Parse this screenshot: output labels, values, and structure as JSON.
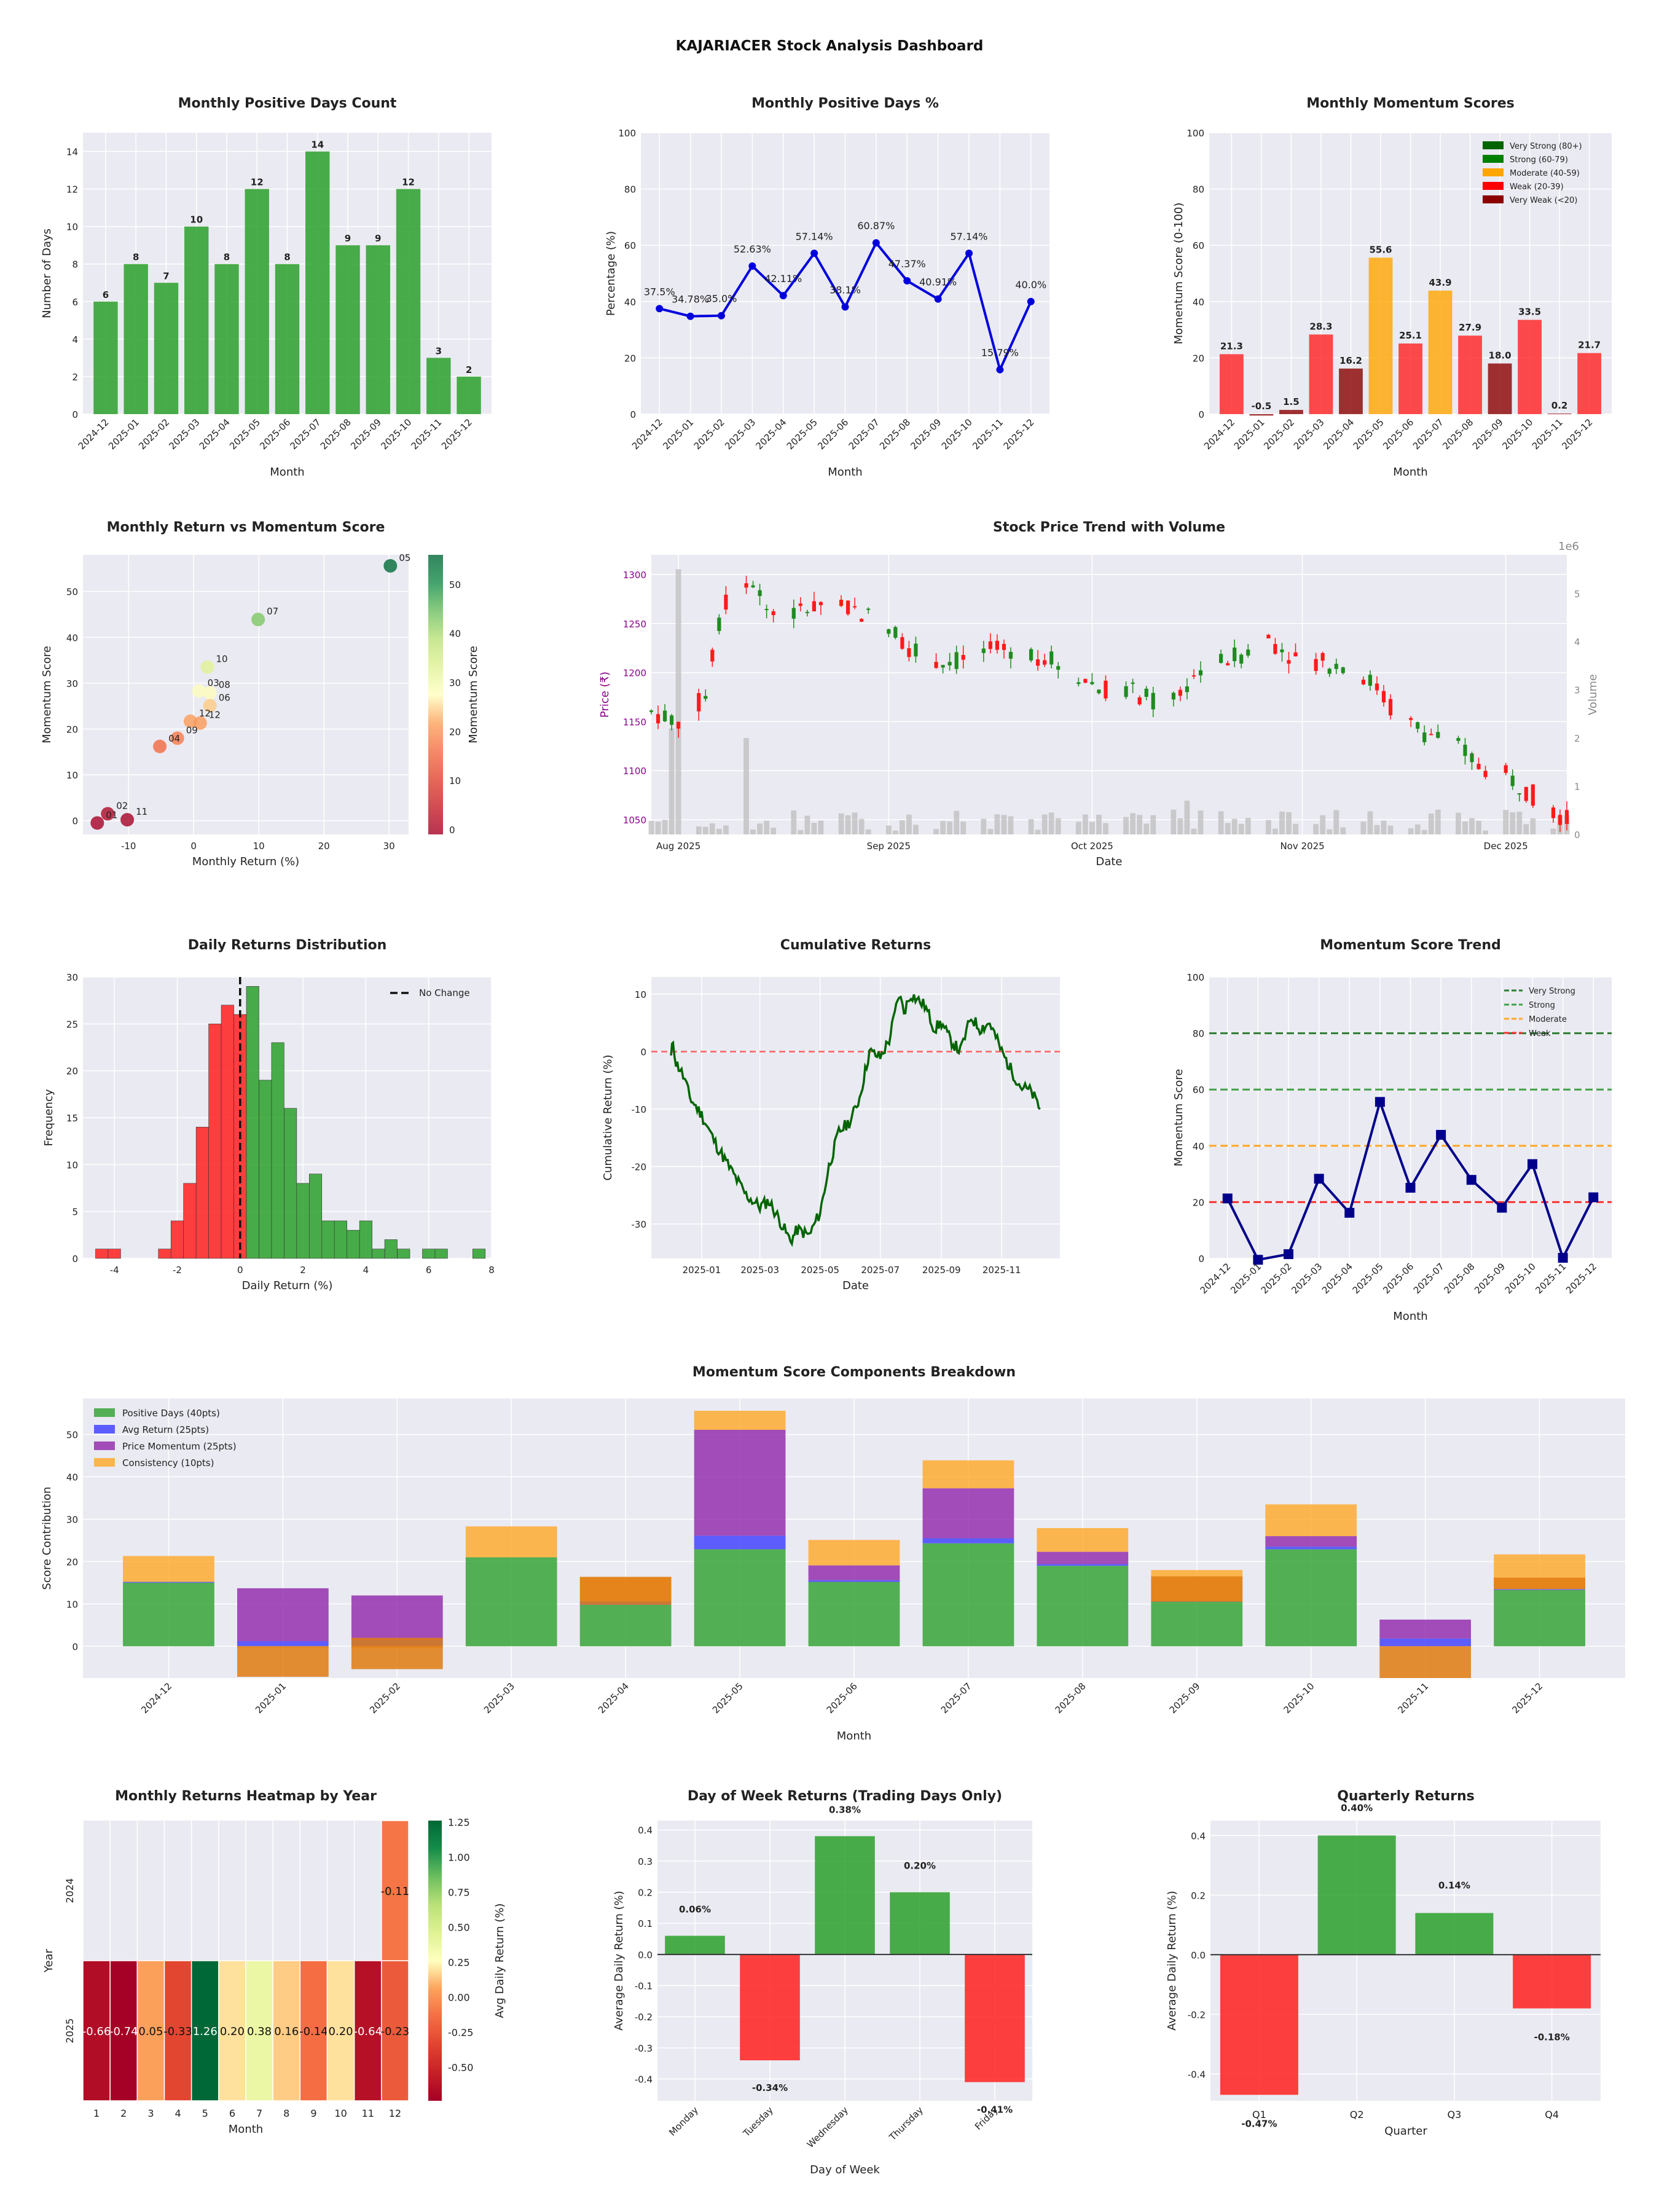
{
  "suptitle": "KAJARIACER Stock Analysis Dashboard",
  "months": [
    "2024-12",
    "2025-01",
    "2025-02",
    "2025-03",
    "2025-04",
    "2025-05",
    "2025-06",
    "2025-07",
    "2025-08",
    "2025-09",
    "2025-10",
    "2025-11",
    "2025-12"
  ],
  "chart_data": [
    {
      "id": "positive-days-count",
      "type": "bar",
      "title": "Monthly Positive Days Count",
      "xlabel": "Month",
      "ylabel": "Number of Days",
      "ylim": [
        0,
        15
      ],
      "yticks": [
        0,
        2,
        4,
        6,
        8,
        10,
        12,
        14
      ],
      "values": [
        6,
        8,
        7,
        10,
        8,
        12,
        8,
        14,
        9,
        9,
        12,
        3,
        2
      ],
      "color": "#2ca02c"
    },
    {
      "id": "positive-days-pct",
      "type": "line",
      "title": "Monthly Positive Days %",
      "xlabel": "Month",
      "ylabel": "Percentage (%)",
      "ylim": [
        0,
        100
      ],
      "yticks": [
        0,
        20,
        40,
        60,
        80,
        100
      ],
      "values": [
        37.5,
        34.78,
        35.0,
        52.63,
        42.11,
        57.14,
        38.1,
        60.87,
        47.37,
        40.91,
        57.14,
        15.79,
        40.0
      ],
      "labels": [
        "37.5%",
        "34.78%",
        "35.0%",
        "52.63%",
        "42.11%",
        "57.14%",
        "38.1%",
        "60.87%",
        "47.37%",
        "40.91%",
        "57.14%",
        "15.79%",
        "40.0%"
      ],
      "color": "#0000dd"
    },
    {
      "id": "momentum-scores",
      "type": "bar",
      "title": "Monthly Momentum Scores",
      "xlabel": "Month",
      "ylabel": "Momentum Score (0-100)",
      "ylim": [
        0,
        100
      ],
      "yticks": [
        0,
        20,
        40,
        60,
        80,
        100
      ],
      "values": [
        21.3,
        -0.5,
        1.5,
        28.3,
        16.2,
        55.6,
        25.1,
        43.9,
        27.9,
        18.0,
        33.5,
        0.2,
        21.7
      ],
      "labels": [
        "21.3",
        "-0.5",
        "1.5",
        "28.3",
        "16.2",
        "55.6",
        "25.1",
        "43.9",
        "27.9",
        "18.0",
        "33.5",
        "0.2",
        "21.7"
      ],
      "bar_colors": [
        "#ff2020",
        "#8b0000",
        "#8b0000",
        "#ff2020",
        "#8b0000",
        "#ffa500",
        "#ff2020",
        "#ffa500",
        "#ff2020",
        "#8b0000",
        "#ff2020",
        "#8b0000",
        "#ff2020"
      ],
      "legend": [
        {
          "label": "Very Strong (80+)",
          "color": "#006400"
        },
        {
          "label": "Strong (60-79)",
          "color": "#008000"
        },
        {
          "label": "Moderate (40-59)",
          "color": "#ffa500"
        },
        {
          "label": "Weak (20-39)",
          "color": "#ff0000"
        },
        {
          "label": "Very Weak (<20)",
          "color": "#8b0000"
        }
      ],
      "legend_position": "top-right"
    },
    {
      "id": "return-vs-momentum",
      "type": "scatter",
      "title": "Monthly Return vs Momentum Score",
      "xlabel": "Monthly Return (%)",
      "ylabel": "Momentum Score",
      "xlim": [
        -17,
        33
      ],
      "ylim": [
        -3,
        58
      ],
      "xticks": [
        -10,
        0,
        10,
        20,
        30
      ],
      "yticks": [
        0,
        10,
        20,
        30,
        40,
        50
      ],
      "colorbar_label": "Momentum Score",
      "colorbar_ticks": [
        0,
        10,
        20,
        30,
        40,
        50
      ],
      "points": [
        {
          "label": "05",
          "x": 30.2,
          "y": 55.6
        },
        {
          "label": "07",
          "x": 9.9,
          "y": 43.9
        },
        {
          "label": "10",
          "x": 2.1,
          "y": 33.5
        },
        {
          "label": "03",
          "x": 0.8,
          "y": 28.3
        },
        {
          "label": "08",
          "x": 2.5,
          "y": 27.9
        },
        {
          "label": "06",
          "x": 2.5,
          "y": 25.1
        },
        {
          "label": "12",
          "x": -0.5,
          "y": 21.7
        },
        {
          "label": "12",
          "x": 1.0,
          "y": 21.3
        },
        {
          "label": "09",
          "x": -2.5,
          "y": 18.0
        },
        {
          "label": "04",
          "x": -5.2,
          "y": 16.2
        },
        {
          "label": "02",
          "x": -13.2,
          "y": 1.5
        },
        {
          "label": "01",
          "x": -14.8,
          "y": -0.5
        },
        {
          "label": "11",
          "x": -10.2,
          "y": 0.2
        }
      ]
    },
    {
      "id": "price-trend-volume",
      "type": "candlestick",
      "title": "Stock Price Trend with Volume",
      "xlabel": "Date",
      "ylabel": "Price (₹)",
      "y2label": "Volume",
      "y2_multiplier": "1e6",
      "ylim": [
        1035,
        1320
      ],
      "yticks": [
        1050,
        1100,
        1150,
        1200,
        1250,
        1300
      ],
      "y2lim": [
        0,
        5.8
      ],
      "y2ticks": [
        0,
        1,
        2,
        3,
        4,
        5
      ],
      "x_start": "2025-07-28",
      "x_end": "2025-12-10",
      "x_tick_labels": [
        {
          "label": "Aug 2025",
          "date": "2025-08-01"
        },
        {
          "label": "Sep 2025",
          "date": "2025-09-01"
        },
        {
          "label": "Oct 2025",
          "date": "2025-10-01"
        },
        {
          "label": "Nov 2025",
          "date": "2025-11-01"
        },
        {
          "label": "Dec 2025",
          "date": "2025-12-01"
        }
      ],
      "price_path": [
        [
          "2025-07-28",
          1160
        ],
        [
          "2025-08-01",
          1150
        ],
        [
          "2025-08-05",
          1175
        ],
        [
          "2025-08-07",
          1250
        ],
        [
          "2025-08-08",
          1270
        ],
        [
          "2025-08-12",
          1295
        ],
        [
          "2025-08-14",
          1265
        ],
        [
          "2025-08-18",
          1260
        ],
        [
          "2025-08-22",
          1270
        ],
        [
          "2025-08-28",
          1262
        ],
        [
          "2025-09-02",
          1240
        ],
        [
          "2025-09-05",
          1220
        ],
        [
          "2025-09-10",
          1210
        ],
        [
          "2025-09-15",
          1220
        ],
        [
          "2025-09-20",
          1225
        ],
        [
          "2025-09-26",
          1210
        ],
        [
          "2025-10-02",
          1185
        ],
        [
          "2025-10-07",
          1180
        ],
        [
          "2025-10-10",
          1170
        ],
        [
          "2025-10-14",
          1180
        ],
        [
          "2025-10-17",
          1205
        ],
        [
          "2025-10-22",
          1215
        ],
        [
          "2025-10-27",
          1235
        ],
        [
          "2025-10-31",
          1215
        ],
        [
          "2025-11-04",
          1210
        ],
        [
          "2025-11-08",
          1208
        ],
        [
          "2025-11-12",
          1185
        ],
        [
          "2025-11-15",
          1155
        ],
        [
          "2025-11-19",
          1140
        ],
        [
          "2025-11-23",
          1130
        ],
        [
          "2025-11-27",
          1105
        ],
        [
          "2025-12-01",
          1095
        ],
        [
          "2025-12-04",
          1080
        ],
        [
          "2025-12-08",
          1060
        ],
        [
          "2025-12-10",
          1050
        ]
      ],
      "volume_spikes": [
        [
          "2025-08-01",
          5.5
        ],
        [
          "2025-07-31",
          2.2
        ],
        [
          "2025-08-09",
          2.2
        ],
        [
          "2025-08-11",
          2.0
        ],
        [
          "2025-10-15",
          0.7
        ],
        [
          "2025-10-19",
          0.65
        ],
        [
          "2025-11-24",
          0.45
        ]
      ]
    },
    {
      "id": "daily-returns-distribution",
      "type": "histogram",
      "title": "Daily Returns Distribution",
      "xlabel": "Daily Return (%)",
      "ylabel": "Frequency",
      "xlim": [
        -5,
        8
      ],
      "ylim": [
        0,
        30
      ],
      "xticks": [
        -4,
        -2,
        0,
        2,
        4,
        6,
        8
      ],
      "yticks": [
        0,
        5,
        10,
        15,
        20,
        25,
        30
      ],
      "bin_start": -4.6,
      "bin_width": 0.4,
      "counts": [
        1,
        1,
        0,
        0,
        0,
        1,
        4,
        8,
        14,
        25,
        27,
        26,
        29,
        19,
        23,
        16,
        8,
        9,
        4,
        4,
        3,
        4,
        1,
        2,
        1,
        0,
        1,
        1,
        0,
        0,
        1
      ],
      "negative_color": "#ff2020",
      "positive_color": "#2ca02c",
      "legend": "No Change",
      "legend_position": "top-right"
    },
    {
      "id": "cumulative-returns",
      "type": "line",
      "title": "Cumulative Returns",
      "xlabel": "Date",
      "ylabel": "Cumulative Return (%)",
      "x_start": "2024-12-01",
      "x_end": "2025-12-10",
      "ylim": [
        -36,
        13
      ],
      "yticks": [
        -30,
        -20,
        -10,
        0,
        10
      ],
      "x_tick_labels": [
        {
          "label": "2025-01",
          "date": "2025-01-01"
        },
        {
          "label": "2025-03",
          "date": "2025-03-01"
        },
        {
          "label": "2025-05",
          "date": "2025-05-01"
        },
        {
          "label": "2025-07",
          "date": "2025-07-01"
        },
        {
          "label": "2025-09",
          "date": "2025-09-01"
        },
        {
          "label": "2025-11",
          "date": "2025-11-01"
        }
      ],
      "path": [
        [
          "2024-12-01",
          -1
        ],
        [
          "2024-12-03",
          2
        ],
        [
          "2024-12-06",
          -2
        ],
        [
          "2024-12-10",
          -3
        ],
        [
          "2024-12-15",
          -5
        ],
        [
          "2024-12-20",
          -8
        ],
        [
          "2025-01-01",
          -11
        ],
        [
          "2025-01-15",
          -16
        ],
        [
          "2025-02-01",
          -21
        ],
        [
          "2025-02-15",
          -25
        ],
        [
          "2025-03-01",
          -27
        ],
        [
          "2025-03-10",
          -26
        ],
        [
          "2025-03-20",
          -29
        ],
        [
          "2025-04-01",
          -33
        ],
        [
          "2025-04-08",
          -31
        ],
        [
          "2025-04-20",
          -32
        ],
        [
          "2025-05-01",
          -28
        ],
        [
          "2025-05-10",
          -20
        ],
        [
          "2025-05-20",
          -14
        ],
        [
          "2025-06-01",
          -12
        ],
        [
          "2025-06-10",
          -8
        ],
        [
          "2025-06-20",
          0
        ],
        [
          "2025-07-01",
          -1
        ],
        [
          "2025-07-10",
          2
        ],
        [
          "2025-07-20",
          10
        ],
        [
          "2025-07-25",
          7
        ],
        [
          "2025-08-01",
          10
        ],
        [
          "2025-08-15",
          8
        ],
        [
          "2025-08-25",
          4
        ],
        [
          "2025-09-01",
          5
        ],
        [
          "2025-09-10",
          2
        ],
        [
          "2025-09-20",
          0
        ],
        [
          "2025-10-01",
          6
        ],
        [
          "2025-10-10",
          4
        ],
        [
          "2025-10-20",
          5
        ],
        [
          "2025-11-01",
          0
        ],
        [
          "2025-11-10",
          -3
        ],
        [
          "2025-11-20",
          -6
        ],
        [
          "2025-12-01",
          -7
        ],
        [
          "2025-12-10",
          -10
        ]
      ],
      "reference_line": 0
    },
    {
      "id": "momentum-trend",
      "type": "line",
      "title": "Momentum Score Trend",
      "xlabel": "Month",
      "ylabel": "Momentum Score",
      "ylim": [
        0,
        100
      ],
      "yticks": [
        0,
        20,
        40,
        60,
        80,
        100
      ],
      "values": [
        21.3,
        -0.5,
        1.5,
        28.3,
        16.2,
        55.6,
        25.1,
        43.9,
        27.9,
        18.0,
        33.5,
        0.2,
        21.7
      ],
      "thresholds": [
        {
          "label": "Very Strong",
          "value": 80,
          "color": "#2e7d32"
        },
        {
          "label": "Strong",
          "value": 60,
          "color": "#43a047"
        },
        {
          "label": "Moderate",
          "value": 40,
          "color": "#ffa726"
        },
        {
          "label": "Weak",
          "value": 20,
          "color": "#ff3030"
        }
      ],
      "legend_position": "top-right"
    },
    {
      "id": "components-breakdown",
      "type": "stacked-bar",
      "title": "Momentum Score Components Breakdown",
      "xlabel": "Month",
      "ylabel": "Score Contribution",
      "ylim": [
        -7.5,
        58.5
      ],
      "yticks": [
        0,
        10,
        20,
        30,
        40,
        50
      ],
      "series": [
        {
          "name": "Positive Days (40pts)",
          "color": "#2ca02c",
          "values": [
            15,
            0,
            0,
            21,
            9.8,
            22.9,
            15.2,
            24.3,
            19,
            10.5,
            22.9,
            0,
            13.3
          ]
        },
        {
          "name": "Avg Return (25pts)",
          "color": "#3a3aff",
          "values": [
            0.2,
            1.2,
            1.5,
            0,
            0.8,
            3.2,
            0.4,
            1.2,
            0.4,
            0.2,
            0.6,
            1.8,
            0.2
          ]
        },
        {
          "name": "Price Momentum (25pts)",
          "color": "#8e24aa",
          "values": [
            0,
            12.5,
            10.5,
            0,
            0,
            25,
            3.5,
            11.8,
            2.9,
            0,
            2.5,
            4.5,
            0
          ]
        },
        {
          "name": "Consistency (10pts)",
          "color": "#ffa726",
          "values": [
            6.1,
            -0.3,
            -0.5,
            7.3,
            5.6,
            4.5,
            6.0,
            6.6,
            5.6,
            7.3,
            7.5,
            -0.1,
            8.2
          ]
        }
      ],
      "orange_overlays": [
        {
          "month": "2025-01",
          "from": -7.2,
          "to": 0
        },
        {
          "month": "2025-02",
          "from": -5.4,
          "to": 2
        },
        {
          "month": "2025-04",
          "from": 9.8,
          "to": 16.4
        },
        {
          "month": "2025-09",
          "from": 10.5,
          "to": 16.5
        },
        {
          "month": "2025-11",
          "from": -7.5,
          "to": 0
        },
        {
          "month": "2025-12",
          "from": 13.5,
          "to": 16.2
        }
      ],
      "legend_position": "top-left"
    },
    {
      "id": "returns-heatmap",
      "type": "heatmap",
      "title": "Monthly Returns Heatmap by Year",
      "xlabel": "Month",
      "ylabel": "Year",
      "columns": [
        "1",
        "2",
        "3",
        "4",
        "5",
        "6",
        "7",
        "8",
        "9",
        "10",
        "11",
        "12"
      ],
      "rows": [
        "2024",
        "2025"
      ],
      "values": [
        [
          null,
          null,
          null,
          null,
          null,
          null,
          null,
          null,
          null,
          null,
          null,
          -0.11
        ],
        [
          -0.66,
          -0.74,
          0.05,
          -0.33,
          1.26,
          0.2,
          0.38,
          0.16,
          -0.14,
          0.2,
          -0.64,
          -0.23
        ]
      ],
      "cell_labels": [
        [
          "",
          "",
          "",
          "",
          "",
          "",
          "",
          "",
          "",
          "",
          "",
          "-0.11"
        ],
        [
          "-0.66",
          "-0.74",
          "0.05",
          "-0.33",
          "1.26",
          "0.20",
          "0.38",
          "0.16",
          "-0.14",
          "0.20",
          "-0.64",
          "-0.23"
        ]
      ],
      "colorbar_label": "Avg Daily Return (%)",
      "colorbar_ticks": [
        -0.5,
        -0.25,
        0,
        0.25,
        0.5,
        0.75,
        1.0,
        1.25
      ],
      "colorbar_tick_labels": [
        "-0.50",
        "-0.25",
        "0.00",
        "0.25",
        "0.50",
        "0.75",
        "1.00",
        "1.25"
      ],
      "vmin": -0.74,
      "vmax": 1.26,
      "colormap": "RdYlGn"
    },
    {
      "id": "day-of-week-returns",
      "type": "bar",
      "title": "Day of Week Returns (Trading Days Only)",
      "xlabel": "Day of Week",
      "ylabel": "Average Daily Return (%)",
      "ylim": [
        -0.47,
        0.43
      ],
      "yticks": [
        -0.4,
        -0.3,
        -0.2,
        -0.1,
        0.0,
        0.1,
        0.2,
        0.3,
        0.4
      ],
      "ytick_labels": [
        "-0.4",
        "-0.3",
        "-0.2",
        "-0.1",
        "0.0",
        "0.1",
        "0.2",
        "0.3",
        "0.4"
      ],
      "categories": [
        "Monday",
        "Tuesday",
        "Wednesday",
        "Thursday",
        "Friday"
      ],
      "values": [
        0.06,
        -0.34,
        0.38,
        0.2,
        -0.41
      ],
      "labels": [
        "0.06%",
        "-0.34%",
        "0.38%",
        "0.20%",
        "-0.41%"
      ]
    },
    {
      "id": "quarterly-returns",
      "type": "bar",
      "title": "Quarterly Returns",
      "xlabel": "Quarter",
      "ylabel": "Average Daily Return (%)",
      "ylim": [
        -0.49,
        0.45
      ],
      "yticks": [
        -0.4,
        -0.2,
        0.0,
        0.2,
        0.4
      ],
      "ytick_labels": [
        "-0.4",
        "-0.2",
        "0.0",
        "0.2",
        "0.4"
      ],
      "categories": [
        "Q1",
        "Q2",
        "Q3",
        "Q4"
      ],
      "values": [
        -0.47,
        0.4,
        0.14,
        -0.18
      ],
      "labels": [
        "-0.47%",
        "0.40%",
        "0.14%",
        "-0.18%"
      ]
    }
  ]
}
